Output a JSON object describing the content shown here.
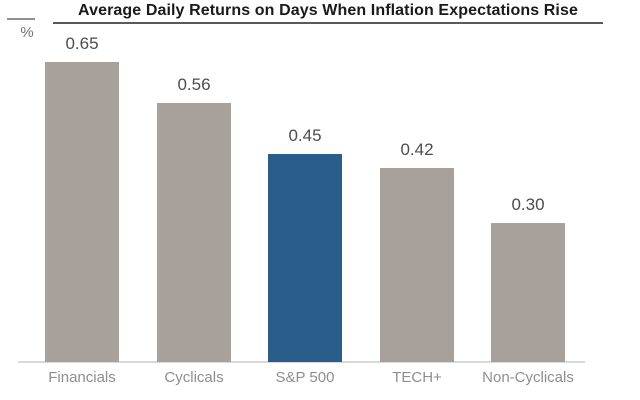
{
  "header": {
    "unit_label": "%"
  },
  "chart_data": {
    "type": "bar",
    "title": "Average Daily Returns on Days When Inflation Expectations Rise",
    "unit": "%",
    "categories": [
      "Financials",
      "Cyclicals",
      "S&P 500",
      "TECH+",
      "Non-Cyclicals"
    ],
    "values": [
      0.65,
      0.56,
      0.45,
      0.42,
      0.3
    ],
    "value_labels": [
      "0.65",
      "0.56",
      "0.45",
      "0.42",
      "0.30"
    ],
    "highlight_index": 2,
    "colors": {
      "bar_default": "#a8a09a",
      "bar_highlight": "#2a5d8a",
      "axis_line": "#d9d9d9",
      "value_label_text": "#4d4d4d",
      "category_label_text": "#8e8e8e",
      "title_text": "#1a1a1a"
    },
    "ylabel": "",
    "xlabel": "",
    "ylim": [
      0,
      0.78
    ],
    "grid": false,
    "legend": null,
    "y_axis_ticks_visible": false
  }
}
